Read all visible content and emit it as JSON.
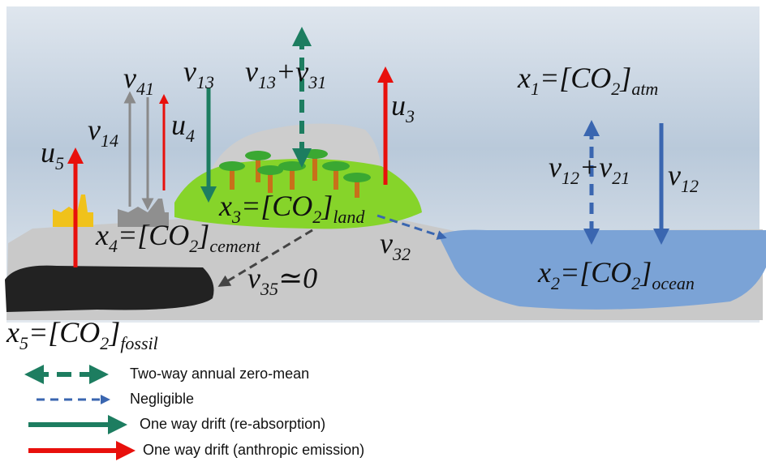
{
  "labels": [
    {
      "parts": [
        {
          "text": "v"
        },
        {
          "sub": "41"
        }
      ]
    },
    {
      "parts": [
        {
          "text": "v"
        },
        {
          "sub": "13"
        }
      ]
    },
    {
      "parts": [
        {
          "text": "v"
        },
        {
          "sub": "13"
        },
        {
          "text": "+v"
        },
        {
          "sub": "31"
        }
      ]
    },
    {
      "parts": [
        {
          "text": "x"
        },
        {
          "sub": "1"
        },
        {
          "text": "=[CO"
        },
        {
          "sub": "2"
        },
        {
          "text": "]"
        },
        {
          "sub": "atm"
        }
      ]
    },
    {
      "parts": [
        {
          "text": "u"
        },
        {
          "sub": "3"
        }
      ]
    },
    {
      "parts": [
        {
          "text": "v"
        },
        {
          "sub": "14"
        }
      ]
    },
    {
      "parts": [
        {
          "text": "u"
        },
        {
          "sub": "4"
        }
      ]
    },
    {
      "parts": [
        {
          "text": "u"
        },
        {
          "sub": "5"
        }
      ]
    },
    {
      "parts": [
        {
          "text": "v"
        },
        {
          "sub": "12"
        },
        {
          "text": "+v"
        },
        {
          "sub": "21"
        }
      ]
    },
    {
      "parts": [
        {
          "text": "v"
        },
        {
          "sub": "12"
        }
      ]
    },
    {
      "parts": [
        {
          "text": "x"
        },
        {
          "sub": "3"
        },
        {
          "text": "=[CO"
        },
        {
          "sub": "2"
        },
        {
          "text": "]"
        },
        {
          "sub": "land"
        }
      ]
    },
    {
      "parts": [
        {
          "text": "x"
        },
        {
          "sub": "4"
        },
        {
          "text": "=[CO"
        },
        {
          "sub": "2"
        },
        {
          "text": "]"
        },
        {
          "sub": "cement"
        }
      ]
    },
    {
      "parts": [
        {
          "text": "v"
        },
        {
          "sub": "32"
        }
      ]
    },
    {
      "parts": [
        {
          "text": "x"
        },
        {
          "sub": "2"
        },
        {
          "text": "=[CO"
        },
        {
          "sub": "2"
        },
        {
          "text": "]"
        },
        {
          "sub": "ocean"
        }
      ]
    },
    {
      "parts": [
        {
          "text": "v"
        },
        {
          "sub": "35"
        },
        {
          "text": "≃0"
        }
      ]
    },
    {
      "parts": [
        {
          "text": "x"
        },
        {
          "sub": "5"
        },
        {
          "text": "=[CO"
        },
        {
          "sub": "2"
        },
        {
          "text": "]"
        },
        {
          "sub": "fossil"
        }
      ]
    }
  ],
  "legend": [
    {
      "label": "Two-way annual zero-mean"
    },
    {
      "label": "Negligible"
    },
    {
      "label": "One way drift  (re-absorption)"
    },
    {
      "label": "One way drift  (anthropic emission)"
    }
  ]
}
